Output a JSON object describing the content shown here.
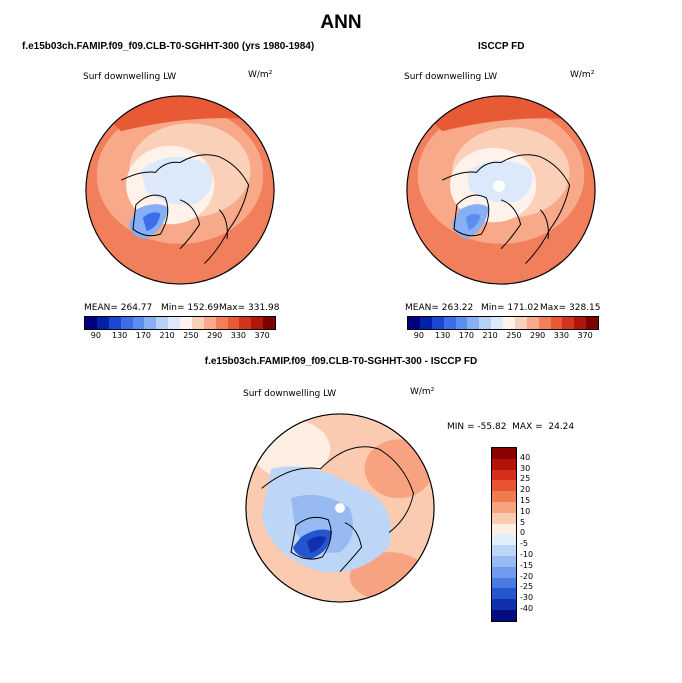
{
  "page": {
    "title": "ANN"
  },
  "panels": {
    "model": {
      "header": "f.e15b03ch.FAMIP.f09_f09.CLB-T0-SGHHT-300 (yrs 1980-1984)",
      "var_label": "Surf downwelling LW",
      "units": "W/m²",
      "mean_text": "MEAN= 264.77",
      "min_text": "Min= 152.69",
      "max_text": "Max= 331.98"
    },
    "obs": {
      "header": "ISCCP FD",
      "var_label": "Surf downwelling LW",
      "units": "W/m²",
      "mean_text": "MEAN= 263.22",
      "min_text": "Min= 171.02",
      "max_text": "Max= 328.15"
    },
    "diff": {
      "header": "f.e15b03ch.FAMIP.f09_f09.CLB-T0-SGHHT-300 - ISCCP FD",
      "var_label": "Surf downwelling LW",
      "units": "W/m²",
      "minmax_text": "MIN = -55.82  MAX =  24.24"
    }
  },
  "colorbar_abs": {
    "labels": [
      "90",
      "130",
      "170",
      "210",
      "250",
      "290",
      "330",
      "370"
    ],
    "colors": [
      "#00007f",
      "#0022a8",
      "#1f45d4",
      "#3b6ee8",
      "#5b8ef0",
      "#86aff4",
      "#b6d0f7",
      "#dce9fb",
      "#fef2ea",
      "#fbd0b8",
      "#f7a989",
      "#f17f5c",
      "#e85a36",
      "#d3341c",
      "#b0170b",
      "#7f0000"
    ]
  },
  "colorbar_diff": {
    "labels": [
      "40",
      "30",
      "25",
      "20",
      "15",
      "10",
      "5",
      "0",
      "-5",
      "-10",
      "-15",
      "-20",
      "-25",
      "-30",
      "-40"
    ],
    "colors": [
      "#8b0000",
      "#b21208",
      "#d7301a",
      "#ea5530",
      "#f27a4f",
      "#f7a381",
      "#fbcbb1",
      "#fdeee4",
      "#e3eefc",
      "#bdd5f7",
      "#97baf2",
      "#6f9bea",
      "#4a7ae0",
      "#2655d0",
      "#1030b0",
      "#000c80"
    ]
  },
  "icons": {
    "polar_map": "polar-stereographic-map-icon"
  }
}
